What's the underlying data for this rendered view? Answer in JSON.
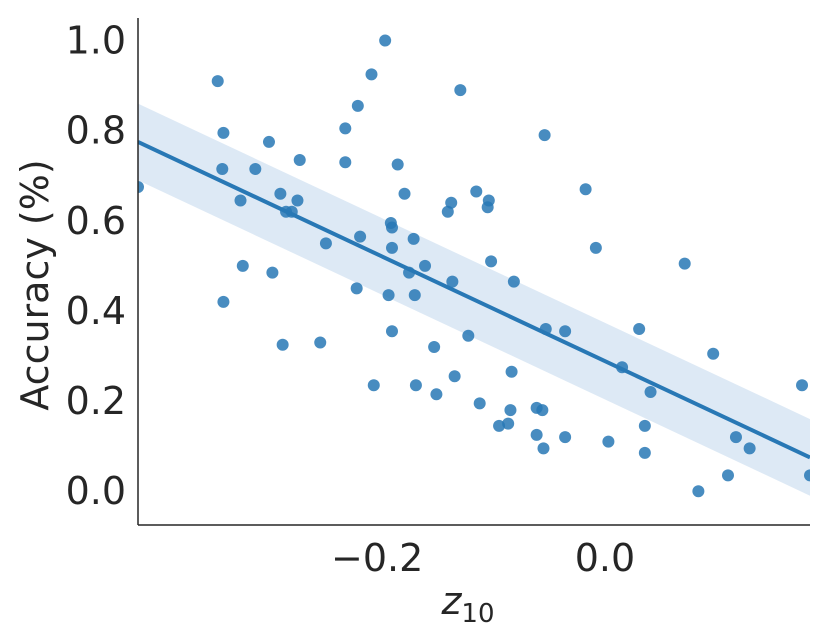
{
  "chart_data": {
    "type": "scatter",
    "xlabel": "z",
    "xlabel_subscript": "10",
    "ylabel": "Accuracy (%)",
    "xlim": [
      -0.41,
      0.18
    ],
    "ylim": [
      -0.075,
      1.05
    ],
    "xticks": [
      -0.2,
      0.0
    ],
    "xtick_labels": [
      "−0.2",
      "0.0"
    ],
    "yticks": [
      0.0,
      0.2,
      0.4,
      0.6,
      0.8,
      1.0
    ],
    "ytick_labels": [
      "0.0",
      "0.2",
      "0.4",
      "0.6",
      "0.8",
      "1.0"
    ],
    "grid": false,
    "colors": {
      "points": "#2878b5",
      "line": "#2878b5",
      "band": "#c6dbef",
      "axes": "#262626"
    },
    "regression": {
      "x": [
        -0.41,
        0.18
      ],
      "y": [
        0.775,
        0.075
      ],
      "ci_upper": [
        0.86,
        0.16
      ],
      "ci_lower": [
        0.69,
        -0.01
      ]
    },
    "points": [
      [
        -0.41,
        0.675
      ],
      [
        -0.34,
        0.91
      ],
      [
        -0.336,
        0.715
      ],
      [
        -0.335,
        0.795
      ],
      [
        -0.335,
        0.42
      ],
      [
        -0.32,
        0.645
      ],
      [
        -0.318,
        0.5
      ],
      [
        -0.307,
        0.715
      ],
      [
        -0.295,
        0.775
      ],
      [
        -0.292,
        0.485
      ],
      [
        -0.285,
        0.66
      ],
      [
        -0.283,
        0.325
      ],
      [
        -0.28,
        0.62
      ],
      [
        -0.275,
        0.62
      ],
      [
        -0.27,
        0.645
      ],
      [
        -0.268,
        0.735
      ],
      [
        -0.25,
        0.33
      ],
      [
        -0.245,
        0.55
      ],
      [
        -0.228,
        0.805
      ],
      [
        -0.228,
        0.73
      ],
      [
        -0.218,
        0.45
      ],
      [
        -0.217,
        0.855
      ],
      [
        -0.215,
        0.565
      ],
      [
        -0.205,
        0.925
      ],
      [
        -0.203,
        0.235
      ],
      [
        -0.193,
        1.0
      ],
      [
        -0.19,
        0.435
      ],
      [
        -0.188,
        0.595
      ],
      [
        -0.187,
        0.585
      ],
      [
        -0.187,
        0.54
      ],
      [
        -0.187,
        0.355
      ],
      [
        -0.182,
        0.725
      ],
      [
        -0.176,
        0.66
      ],
      [
        -0.172,
        0.485
      ],
      [
        -0.168,
        0.56
      ],
      [
        -0.167,
        0.435
      ],
      [
        -0.166,
        0.235
      ],
      [
        -0.158,
        0.5
      ],
      [
        -0.15,
        0.32
      ],
      [
        -0.148,
        0.215
      ],
      [
        -0.138,
        0.62
      ],
      [
        -0.135,
        0.64
      ],
      [
        -0.134,
        0.465
      ],
      [
        -0.132,
        0.255
      ],
      [
        -0.127,
        0.89
      ],
      [
        -0.12,
        0.345
      ],
      [
        -0.113,
        0.665
      ],
      [
        -0.11,
        0.195
      ],
      [
        -0.103,
        0.63
      ],
      [
        -0.102,
        0.645
      ],
      [
        -0.1,
        0.51
      ],
      [
        -0.093,
        0.145
      ],
      [
        -0.085,
        0.15
      ],
      [
        -0.083,
        0.18
      ],
      [
        -0.082,
        0.265
      ],
      [
        -0.08,
        0.465
      ],
      [
        -0.06,
        0.185
      ],
      [
        -0.06,
        0.125
      ],
      [
        -0.055,
        0.18
      ],
      [
        -0.054,
        0.095
      ],
      [
        -0.053,
        0.79
      ],
      [
        -0.052,
        0.36
      ],
      [
        -0.035,
        0.355
      ],
      [
        -0.035,
        0.12
      ],
      [
        -0.017,
        0.67
      ],
      [
        -0.008,
        0.54
      ],
      [
        0.003,
        0.11
      ],
      [
        0.015,
        0.275
      ],
      [
        0.03,
        0.36
      ],
      [
        0.035,
        0.145
      ],
      [
        0.035,
        0.085
      ],
      [
        0.04,
        0.22
      ],
      [
        0.07,
        0.505
      ],
      [
        0.082,
        0.0
      ],
      [
        0.095,
        0.305
      ],
      [
        0.108,
        0.035
      ],
      [
        0.115,
        0.12
      ],
      [
        0.127,
        0.095
      ],
      [
        0.173,
        0.235
      ],
      [
        0.18,
        0.035
      ]
    ]
  }
}
